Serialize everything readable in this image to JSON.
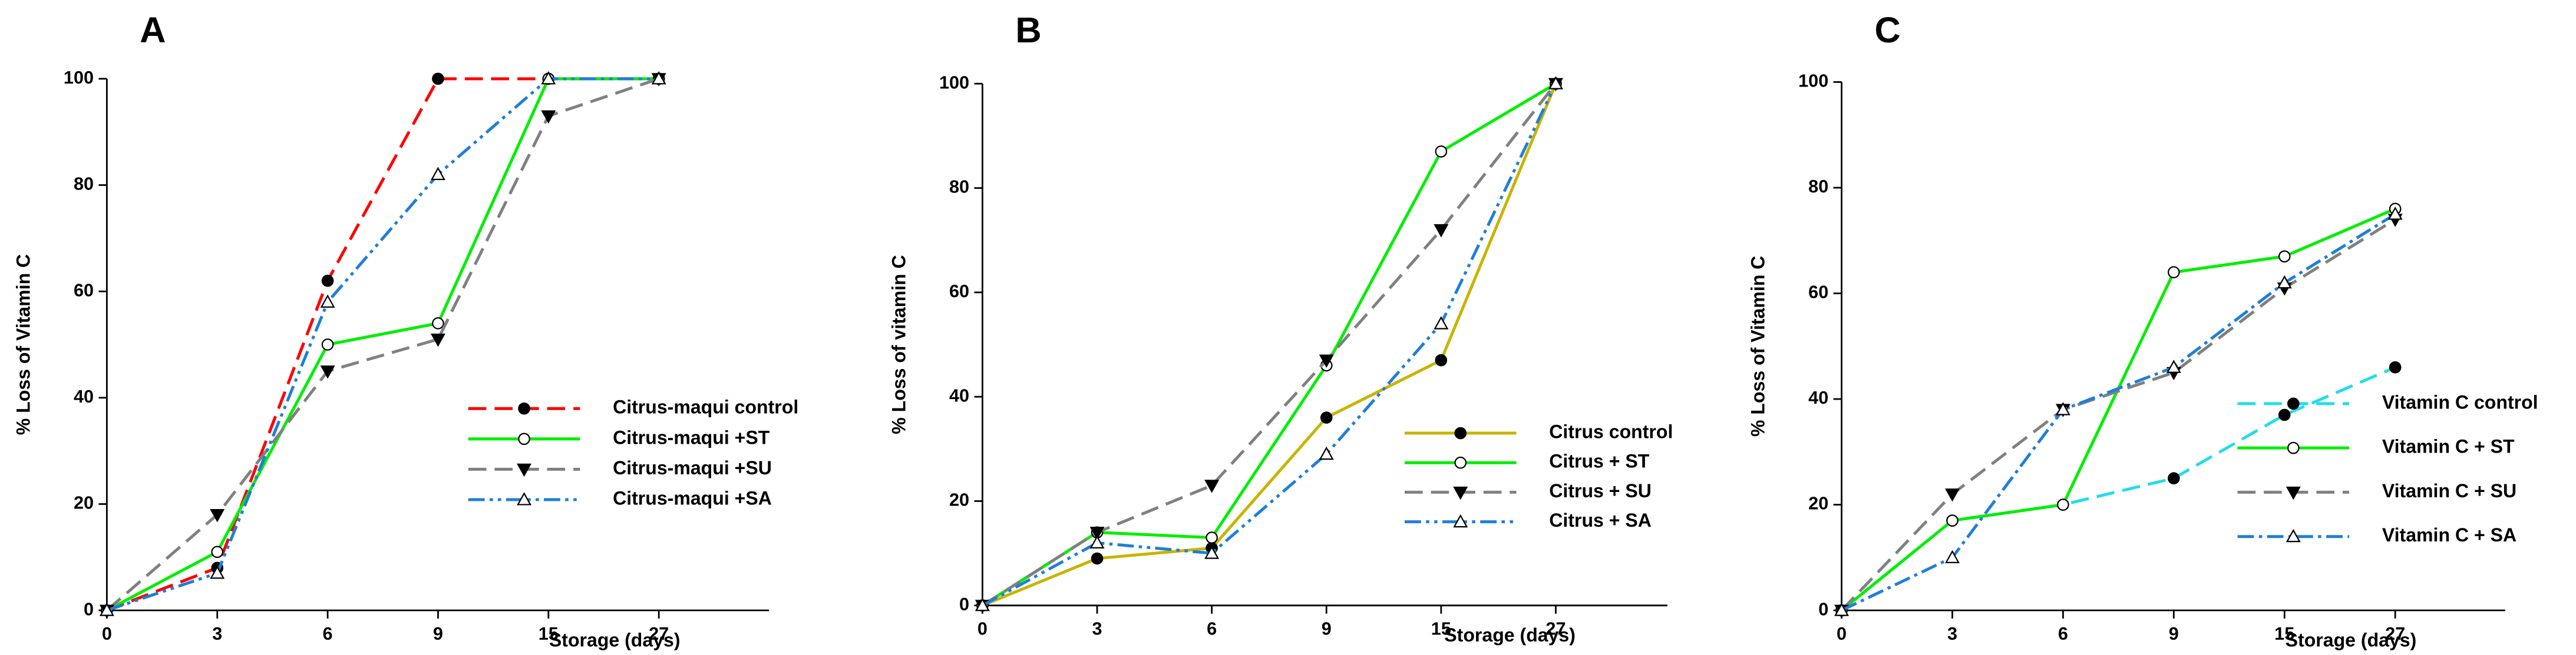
{
  "chart_data": [
    {
      "type": "line",
      "title": "A",
      "x_label": "Storage (days)",
      "y_label": "% Loss of Vitamin C",
      "categories": [
        "0",
        "3",
        "6",
        "9",
        "15",
        "27"
      ],
      "ylim": [
        0,
        100
      ],
      "yticks": [
        0,
        20,
        40,
        60,
        80,
        100
      ],
      "series": [
        {
          "name": "Citrus-maqui control",
          "color": "#ff0000",
          "style": "dashed",
          "marker": "filled-circle",
          "values": [
            0,
            8,
            62,
            100,
            100,
            100
          ]
        },
        {
          "name": "Citrus-maqui +ST",
          "color": "#00ee00",
          "style": "solid",
          "marker": "open-circle",
          "values": [
            0,
            11,
            50,
            54,
            100,
            100
          ]
        },
        {
          "name": "Citrus-maqui +SU",
          "color": "#808080",
          "style": "dashed",
          "marker": "filled-triangle-down",
          "values": [
            0,
            18,
            45,
            51,
            93,
            100
          ]
        },
        {
          "name": "Citrus-maqui +SA",
          "color": "#1e7fd8",
          "style": "dash-dot-dot",
          "marker": "open-triangle-up",
          "values": [
            0,
            7,
            58,
            82,
            100,
            100
          ]
        }
      ]
    },
    {
      "type": "line",
      "title": "B",
      "x_label": "Storage (days)",
      "y_label": "% Loss of vitamin C",
      "categories": [
        "0",
        "3",
        "6",
        "9",
        "15",
        "27"
      ],
      "ylim": [
        0,
        100
      ],
      "yticks": [
        0,
        20,
        40,
        60,
        80,
        100
      ],
      "series": [
        {
          "name": "Citrus control",
          "color": "#c8b400",
          "style": "solid",
          "marker": "filled-circle",
          "values": [
            0,
            9,
            11,
            36,
            47,
            100
          ]
        },
        {
          "name": "Citrus + ST",
          "color": "#00ee00",
          "style": "solid",
          "marker": "open-circle",
          "values": [
            0,
            14,
            13,
            46,
            87,
            100
          ]
        },
        {
          "name": "Citrus + SU",
          "color": "#808080",
          "style": "dashed",
          "marker": "filled-triangle-down",
          "values": [
            0,
            14,
            23,
            47,
            72,
            100
          ]
        },
        {
          "name": "Citrus + SA",
          "color": "#1e7fd8",
          "style": "dash-dot-dot",
          "marker": "open-triangle-up",
          "values": [
            0,
            12,
            10,
            29,
            54,
            100
          ]
        }
      ]
    },
    {
      "type": "line",
      "title": "C",
      "x_label": "Storage (days)",
      "y_label": "% Loss of Vitamin C",
      "categories": [
        "0",
        "3",
        "6",
        "9",
        "15",
        "27"
      ],
      "ylim": [
        0,
        100
      ],
      "yticks": [
        0,
        20,
        40,
        60,
        80,
        100
      ],
      "series": [
        {
          "name": "Vitamin C control",
          "color": "#22dde8",
          "style": "dashed",
          "marker": "filled-circle",
          "values": [
            0,
            17,
            20,
            25,
            37,
            46
          ]
        },
        {
          "name": "Vitamin C + ST",
          "color": "#00ee00",
          "style": "solid",
          "marker": "open-circle",
          "values": [
            0,
            17,
            20,
            64,
            67,
            76
          ]
        },
        {
          "name": "Vitamin C + SU",
          "color": "#808080",
          "style": "dashed",
          "marker": "filled-triangle-down",
          "values": [
            0,
            22,
            38,
            45,
            61,
            74
          ]
        },
        {
          "name": "Vitamin C + SA",
          "color": "#1e7fd8",
          "style": "dash-dot",
          "marker": "open-triangle-up",
          "values": [
            0,
            10,
            38,
            46,
            62,
            75
          ]
        }
      ]
    }
  ]
}
